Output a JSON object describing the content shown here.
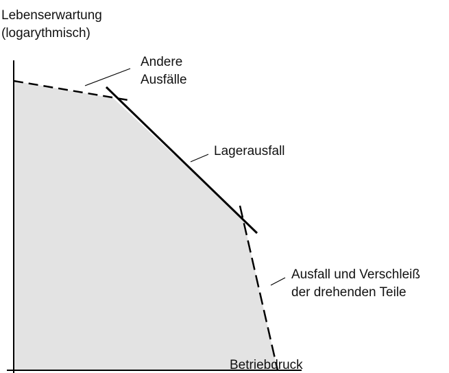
{
  "axis_labels": {
    "y": [
      "Lebenserwartung",
      "(logarythmisch)"
    ],
    "x": "Betriebdruck"
  },
  "curves": [
    {
      "label": [
        "Andere",
        "Ausfälle"
      ]
    },
    {
      "label": [
        "Lagerausfall"
      ]
    },
    {
      "label": [
        "Ausfall und Verschleiß",
        "der drehenden Teile"
      ]
    }
  ]
}
